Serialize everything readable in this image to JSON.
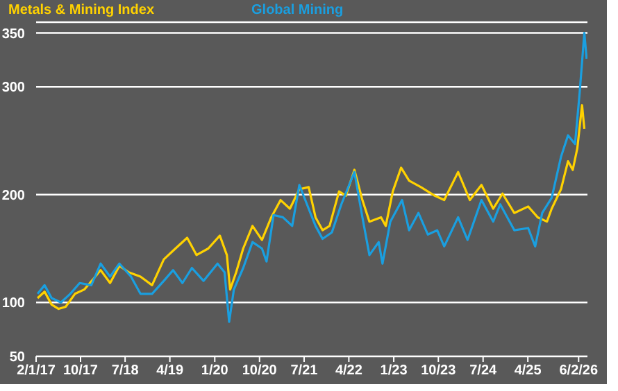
{
  "chart_data": {
    "type": "line",
    "xlim": [
      "2017-01-02",
      "2026-04-01"
    ],
    "ylim": [
      50,
      360
    ],
    "yticks": [
      50,
      100,
      200,
      300,
      350
    ],
    "xticks": [
      {
        "value": "2017-01-02",
        "label": "2/1/17"
      },
      {
        "value": "2017-10-01",
        "label": "10/17"
      },
      {
        "value": "2018-07-01",
        "label": "7/18"
      },
      {
        "value": "2019-04-01",
        "label": "4/19"
      },
      {
        "value": "2020-01-01",
        "label": "1/20"
      },
      {
        "value": "2020-10-01",
        "label": "10/20"
      },
      {
        "value": "2021-07-01",
        "label": "7/21"
      },
      {
        "value": "2022-04-01",
        "label": "4/22"
      },
      {
        "value": "2023-01-01",
        "label": "1/23"
      },
      {
        "value": "2023-10-01",
        "label": "10/23"
      },
      {
        "value": "2024-07-01",
        "label": "7/24"
      },
      {
        "value": "2025-04-01",
        "label": "4/25"
      },
      {
        "value": "2026-02-06",
        "label": "6/2/26"
      }
    ],
    "grid": "y",
    "legend": "top",
    "marker": "none",
    "line_style": "solid",
    "series": [
      {
        "name": "Metals & Mining Index",
        "color": "#ffd200",
        "x": [
          "2017-01-11",
          "2017-02-23",
          "2017-04-07",
          "2017-05-20",
          "2017-07-02",
          "2017-08-28",
          "2017-10-24",
          "2017-12-20",
          "2018-02-01",
          "2018-03-31",
          "2018-05-27",
          "2018-07-23",
          "2018-10-03",
          "2018-12-13",
          "2019-02-23",
          "2019-05-05",
          "2019-07-16",
          "2019-09-11",
          "2019-11-22",
          "2020-02-01",
          "2020-03-15",
          "2020-04-04",
          "2020-05-11",
          "2020-06-23",
          "2020-08-19",
          "2020-10-16",
          "2020-12-12",
          "2021-02-07",
          "2021-04-05",
          "2021-06-02",
          "2021-07-29",
          "2021-09-09",
          "2021-10-22",
          "2021-12-04",
          "2022-01-31",
          "2022-03-14",
          "2022-05-05",
          "2022-06-23",
          "2022-08-05",
          "2022-10-15",
          "2022-11-13",
          "2022-12-26",
          "2023-02-15",
          "2023-04-05",
          "2023-06-16",
          "2023-09-09",
          "2023-11-06",
          "2024-01-30",
          "2024-04-11",
          "2024-06-21",
          "2024-09-01",
          "2024-10-28",
          "2025-01-08",
          "2025-04-03",
          "2025-05-31",
          "2025-07-27",
          "2025-08-25",
          "2025-10-21",
          "2025-12-03",
          "2026-01-01",
          "2026-01-29",
          "2026-02-27",
          "2026-03-13"
        ],
        "values": [
          104,
          110,
          98,
          94,
          96,
          108,
          112,
          122,
          130,
          118,
          134,
          128,
          124,
          116,
          140,
          150,
          160,
          144,
          150,
          162,
          144,
          112,
          128,
          150,
          171,
          158,
          179,
          195,
          187,
          205,
          207,
          179,
          167,
          171,
          203,
          199,
          223,
          195,
          175,
          179,
          171,
          203,
          225,
          213,
          207,
          199,
          195,
          221,
          195,
          209,
          187,
          201,
          183,
          189,
          179,
          175,
          187,
          205,
          231,
          223,
          243,
          283,
          261
        ]
      },
      {
        "name": "Global Mining",
        "color": "#1a9fe0",
        "x": [
          "2017-01-11",
          "2017-02-23",
          "2017-04-07",
          "2017-06-03",
          "2017-07-30",
          "2017-09-26",
          "2017-12-06",
          "2018-02-01",
          "2018-03-31",
          "2018-05-27",
          "2018-08-06",
          "2018-10-03",
          "2018-12-13",
          "2019-02-23",
          "2019-04-21",
          "2019-06-17",
          "2019-08-14",
          "2019-10-24",
          "2020-01-18",
          "2020-03-01",
          "2020-03-29",
          "2020-04-27",
          "2020-06-23",
          "2020-08-19",
          "2020-10-16",
          "2020-11-13",
          "2020-12-26",
          "2021-02-21",
          "2021-04-19",
          "2021-06-02",
          "2021-07-29",
          "2021-09-09",
          "2021-10-22",
          "2021-12-18",
          "2022-02-14",
          "2022-05-05",
          "2022-06-23",
          "2022-08-05",
          "2022-10-01",
          "2022-10-24",
          "2022-12-11",
          "2023-02-21",
          "2023-04-05",
          "2023-06-01",
          "2023-07-29",
          "2023-09-24",
          "2023-11-06",
          "2024-01-30",
          "2024-03-28",
          "2024-06-21",
          "2024-09-01",
          "2024-10-14",
          "2025-01-08",
          "2025-04-03",
          "2025-05-16",
          "2025-06-28",
          "2025-08-25",
          "2025-10-21",
          "2025-12-03",
          "2026-01-15",
          "2026-02-12",
          "2026-03-13",
          "2026-03-27"
        ],
        "values": [
          108,
          116,
          104,
          100,
          108,
          118,
          116,
          136,
          124,
          136,
          124,
          108,
          108,
          120,
          130,
          118,
          132,
          120,
          136,
          128,
          82,
          112,
          132,
          156,
          150,
          138,
          181,
          179,
          171,
          209,
          187,
          171,
          159,
          165,
          191,
          221,
          179,
          144,
          156,
          136,
          175,
          195,
          167,
          183,
          163,
          167,
          152,
          179,
          158,
          195,
          175,
          191,
          167,
          169,
          152,
          183,
          197,
          235,
          255,
          247,
          294,
          350,
          326
        ]
      }
    ]
  }
}
